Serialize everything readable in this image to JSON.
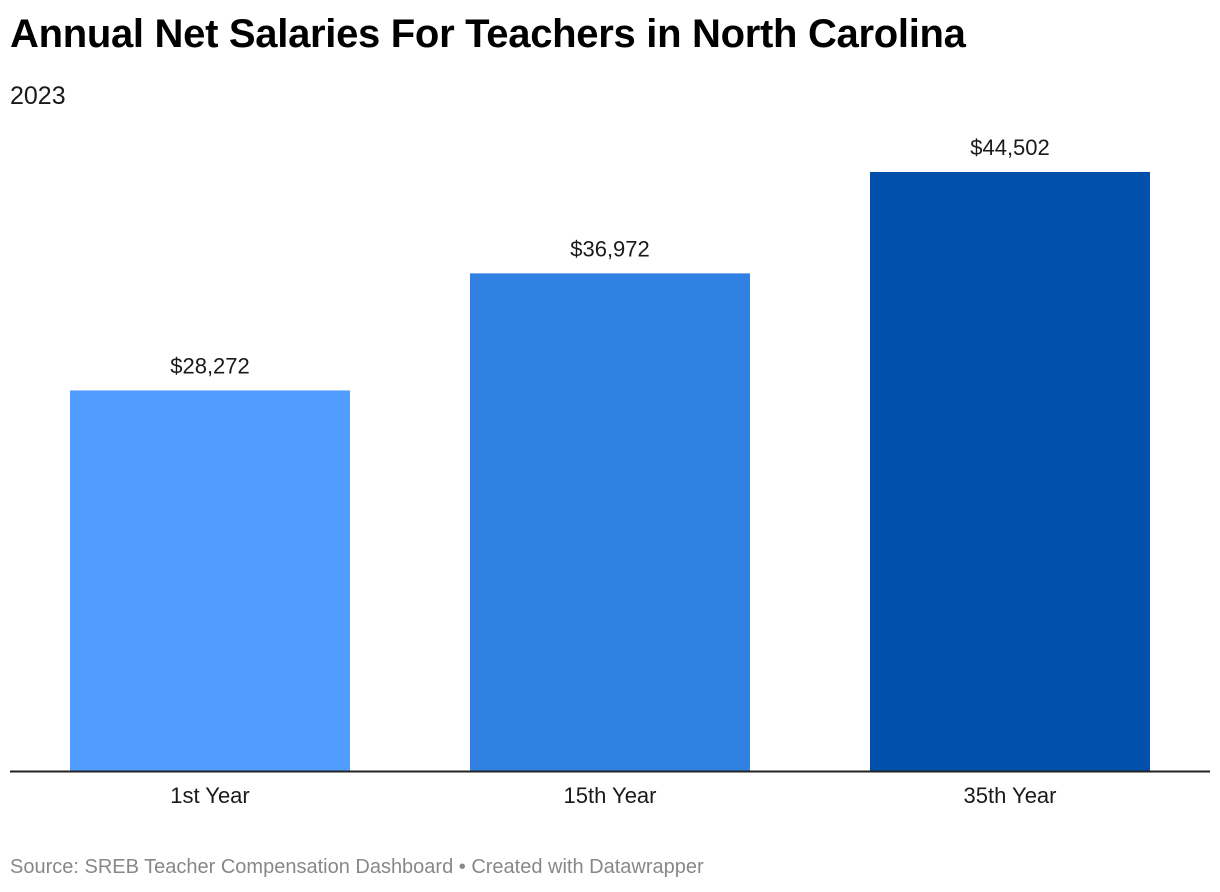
{
  "header": {
    "title": "Annual Net Salaries For Teachers in North Carolina",
    "subtitle": "2023"
  },
  "chart_data": {
    "type": "bar",
    "title": "Annual Net Salaries For Teachers in North Carolina",
    "subtitle": "2023",
    "categories": [
      "1st Year",
      "15th Year",
      "35th Year"
    ],
    "values": [
      28272,
      36972,
      44502
    ],
    "value_labels": [
      "$28,272",
      "$36,972",
      "$44,502"
    ],
    "bar_colors": [
      "#519cff",
      "#3181e3",
      "#0050ac"
    ],
    "axis_color": "#222222",
    "ylim": [
      0,
      50000
    ],
    "grid": false,
    "legend": "none",
    "xlabel": "",
    "ylabel": ""
  },
  "footer": {
    "source_text": "Source: SREB Teacher Compensation Dashboard • Created with Datawrapper"
  }
}
